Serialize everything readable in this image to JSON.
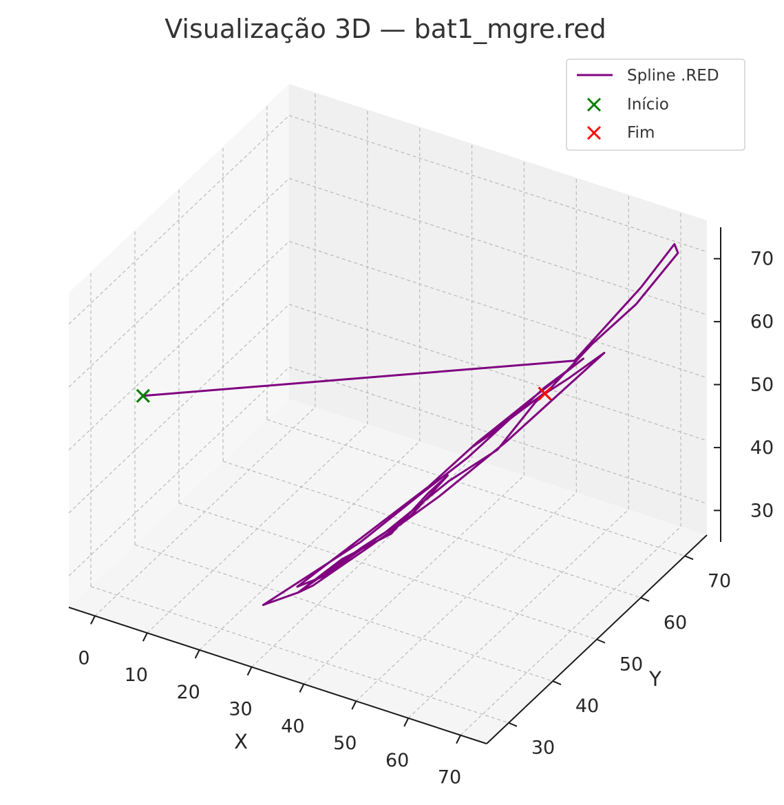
{
  "chart_data": {
    "type": "line3d",
    "title": "Visualização 3D — bat1_mgre.red",
    "xlabel": "X",
    "ylabel": "Y",
    "zlabel": "",
    "xticks": [
      0,
      10,
      20,
      30,
      40,
      50,
      60,
      70
    ],
    "yticks": [
      30,
      40,
      50,
      60,
      70
    ],
    "zticks": [
      30,
      40,
      50,
      60,
      70
    ],
    "xlim": [
      -5,
      75
    ],
    "ylim": [
      25,
      75
    ],
    "zlim": [
      25,
      75
    ],
    "grid": true,
    "legend_position": "top-right",
    "legend": [
      {
        "label": "Spline .RED",
        "kind": "line",
        "color": "#800080"
      },
      {
        "label": "Início",
        "kind": "x-marker",
        "color": "#008000"
      },
      {
        "label": "Fim",
        "kind": "x-marker",
        "color": "#ff0000"
      }
    ],
    "series": [
      {
        "name": "Spline .RED",
        "color": "#800080",
        "points": [
          [
            5,
            30,
            58
          ],
          [
            64,
            58,
            61
          ],
          [
            67,
            62,
            65
          ],
          [
            70,
            66,
            69
          ],
          [
            73,
            70,
            74
          ],
          [
            72,
            72,
            71
          ],
          [
            69,
            66,
            66
          ],
          [
            64,
            62,
            61
          ],
          [
            60,
            57,
            56
          ],
          [
            56,
            53,
            53
          ],
          [
            52,
            48,
            49
          ],
          [
            46,
            44,
            44
          ],
          [
            40,
            38,
            39
          ],
          [
            34,
            34,
            35
          ],
          [
            28,
            30,
            31
          ],
          [
            33,
            32,
            33
          ],
          [
            40,
            38,
            38
          ],
          [
            46,
            42,
            42
          ],
          [
            49,
            47,
            46
          ],
          [
            47,
            45,
            44
          ],
          [
            44,
            40,
            40
          ],
          [
            38,
            36,
            37
          ],
          [
            33,
            32,
            33
          ],
          [
            35,
            33,
            34
          ],
          [
            42,
            38,
            39
          ],
          [
            50,
            44,
            45
          ],
          [
            57,
            51,
            51
          ],
          [
            63,
            56,
            57
          ],
          [
            68,
            60,
            62
          ],
          [
            63,
            58,
            58
          ],
          [
            57,
            54,
            54
          ],
          [
            52,
            49,
            50
          ],
          [
            55,
            52,
            52
          ],
          [
            60,
            56,
            57
          ],
          [
            64,
            60,
            60
          ],
          [
            58,
            56,
            55
          ],
          [
            52,
            50,
            50
          ],
          [
            47,
            45,
            45
          ],
          [
            42,
            41,
            41
          ],
          [
            37,
            37,
            37
          ],
          [
            32,
            33,
            33
          ],
          [
            36,
            34,
            35
          ],
          [
            43,
            40,
            40
          ],
          [
            50,
            46,
            46
          ],
          [
            56,
            50,
            50
          ],
          [
            59,
            55,
            55
          ],
          [
            60,
            56,
            56
          ]
        ]
      }
    ],
    "start_point": {
      "label": "Início",
      "color": "#008000",
      "point": [
        5,
        30,
        58
      ]
    },
    "end_point": {
      "label": "Fim",
      "color": "#ff0000",
      "point": [
        60,
        56,
        56
      ]
    }
  }
}
